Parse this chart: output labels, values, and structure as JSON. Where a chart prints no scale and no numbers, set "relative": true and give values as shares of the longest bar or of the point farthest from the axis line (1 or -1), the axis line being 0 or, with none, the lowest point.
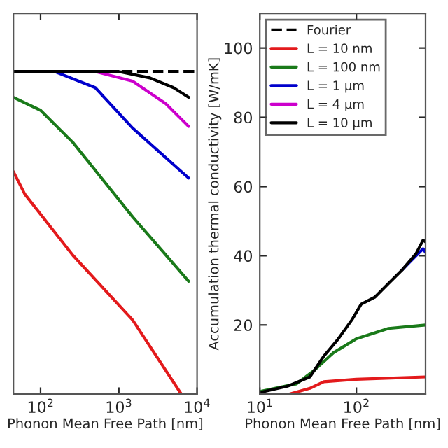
{
  "chart_data": [
    {
      "type": "line",
      "relative": true,
      "log": "x",
      "xlabel": "Phonon Mean Free Path [nm]",
      "xlim": [
        45,
        10000
      ],
      "xticks": [
        {
          "value": 100,
          "label": "10$^{2}$"
        },
        {
          "value": 1000,
          "label": "10$^{3}$"
        },
        {
          "value": 10000,
          "label": "10$^{4}$"
        }
      ],
      "grid": false,
      "legend": false,
      "series": [
        {
          "color": "#000000",
          "line_style": "dashed",
          "x": [
            45,
            10000
          ],
          "values": [
            1,
            1
          ]
        },
        {
          "color": "#e31a1c",
          "x": [
            45,
            63,
            260,
            1500,
            6300
          ],
          "values": [
            0.69,
            0.62,
            0.43,
            0.23,
            0
          ]
        },
        {
          "color": "#1a7a1a",
          "x": [
            45,
            100,
            260,
            1500,
            7800
          ],
          "values": [
            0.92,
            0.88,
            0.78,
            0.55,
            0.35
          ]
        },
        {
          "color": "#0000cc",
          "x": [
            45,
            150,
            500,
            1500,
            7800
          ],
          "values": [
            1,
            1,
            0.95,
            0.825,
            0.67
          ]
        },
        {
          "color": "#cc00cc",
          "x": [
            45,
            500,
            1500,
            4000,
            7800
          ],
          "values": [
            1,
            1,
            0.97,
            0.9,
            0.83
          ]
        },
        {
          "color": "#000000",
          "x": [
            45,
            1000,
            2500,
            5000,
            7800
          ],
          "values": [
            1,
            1,
            0.98,
            0.95,
            0.92
          ]
        }
      ]
    },
    {
      "type": "line",
      "log": "x",
      "ylabel": "Accumulation thermal conductivity [W/mK]",
      "xlabel": "Phonon Mean Free Path [nm]",
      "xlim": [
        10,
        520
      ],
      "ylim": [
        0,
        110
      ],
      "xticks": [
        {
          "value": 10,
          "label": "10$^{1}$"
        },
        {
          "value": 100,
          "label": "10$^{2}$"
        }
      ],
      "yticks": [
        20,
        40,
        60,
        80,
        100
      ],
      "grid": false,
      "legend": "top left",
      "series": [
        {
          "name": "Fourier",
          "color": "#000000",
          "line_style": "dashed"
        },
        {
          "name": "L = 10 nm",
          "color": "#e31a1c",
          "x": [
            10,
            20,
            33,
            46,
            100,
            520
          ],
          "values": [
            0,
            0,
            1.7,
            3.6,
            4.3,
            5
          ]
        },
        {
          "name": "L = 100 nm",
          "color": "#1a7a1a",
          "x": [
            10,
            24,
            37,
            58,
            100,
            215,
            520
          ],
          "values": [
            0.8,
            3,
            7,
            12,
            16,
            19,
            20
          ]
        },
        {
          "name": "L = 1 μm",
          "color": "#0000cc",
          "x": [
            300,
            415,
            490,
            520
          ],
          "values": [
            36,
            40,
            42,
            41
          ]
        },
        {
          "name": "L = 4 μm",
          "color": "#cc00cc"
        },
        {
          "name": "L = 10 μm",
          "color": "#000000",
          "x": [
            10,
            19.3,
            33,
            46,
            65,
            90,
            112,
            155,
            215,
            300,
            415,
            490,
            520
          ],
          "values": [
            0.5,
            2.3,
            5,
            11,
            16,
            21.5,
            26,
            28,
            32,
            36,
            40.6,
            44.5,
            44
          ]
        }
      ]
    }
  ]
}
